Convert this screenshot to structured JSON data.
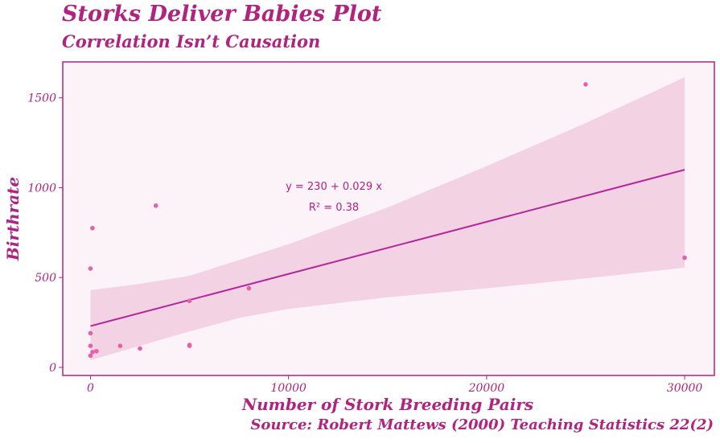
{
  "header": {
    "title": "Storks Deliver Babies Plot",
    "subtitle": "Correlation Isn’t Causation"
  },
  "caption": "Source: Robert Mattews (2000) Teaching Statistics 22(2)",
  "colors": {
    "accent": "#b0237f",
    "panel_bg": "#fcf3f8",
    "band": "#f3d2e4",
    "line": "#b5279b",
    "point": "#e460a8"
  },
  "chart_data": {
    "type": "scatter",
    "xlabel": "Number of Stork Breeding Pairs",
    "ylabel": "Birthrate",
    "xlim": [
      -1400,
      31500
    ],
    "ylim": [
      -45,
      1700
    ],
    "xticks": [
      0,
      10000,
      20000,
      30000
    ],
    "yticks": [
      0,
      500,
      1000,
      1500
    ],
    "xtick_labels": [
      "0",
      "10000",
      "20000",
      "30000"
    ],
    "ytick_labels": [
      "0",
      "500",
      "1000",
      "1500"
    ],
    "grid": false,
    "points": [
      {
        "x": 0,
        "y": 190
      },
      {
        "x": 0,
        "y": 120
      },
      {
        "x": 0,
        "y": 65
      },
      {
        "x": 0,
        "y": 550
      },
      {
        "x": 100,
        "y": 775
      },
      {
        "x": 100,
        "y": 85
      },
      {
        "x": 300,
        "y": 90
      },
      {
        "x": 1500,
        "y": 120
      },
      {
        "x": 2500,
        "y": 105
      },
      {
        "x": 3300,
        "y": 900
      },
      {
        "x": 5000,
        "y": 120
      },
      {
        "x": 5000,
        "y": 125
      },
      {
        "x": 5000,
        "y": 370
      },
      {
        "x": 8000,
        "y": 440
      },
      {
        "x": 25000,
        "y": 1575
      },
      {
        "x": 30000,
        "y": 610
      }
    ],
    "fit": {
      "intercept": 230,
      "slope": 0.029
    },
    "ci_band": [
      {
        "x": 0,
        "lo": 40,
        "hi": 430
      },
      {
        "x": 2500,
        "hi": 465
      },
      {
        "x": 5000,
        "lo": 200,
        "hi": 510
      },
      {
        "x": 7500,
        "lo": 275
      },
      {
        "x": 10000,
        "lo": 325,
        "hi": 685
      },
      {
        "x": 15000,
        "lo": 390,
        "hi": 890
      },
      {
        "x": 20000,
        "lo": 440,
        "hi": 1120
      },
      {
        "x": 25000,
        "lo": 495,
        "hi": 1360
      },
      {
        "x": 30000,
        "lo": 555,
        "hi": 1615
      }
    ],
    "annotation": {
      "equation": "y = 230 + 0.029 x",
      "r2": "R² = 0.38",
      "x": 12500,
      "y": 1000
    }
  }
}
